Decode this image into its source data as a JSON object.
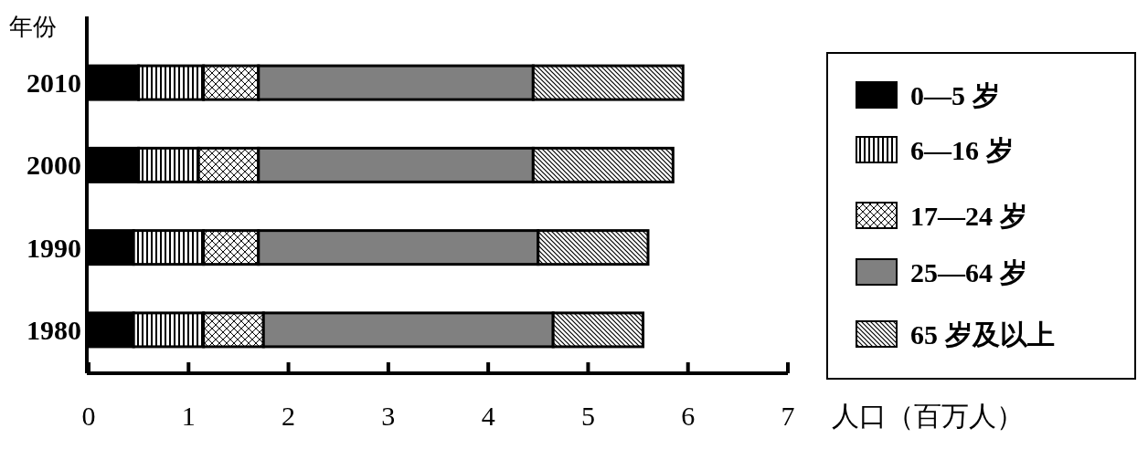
{
  "chart_data": {
    "type": "bar",
    "orientation": "horizontal",
    "stacked": true,
    "ylabel": "年份",
    "xlabel": "人口（百万人）",
    "categories": [
      "2010",
      "2000",
      "1990",
      "1980"
    ],
    "xlim": [
      0,
      7
    ],
    "xticks": [
      0,
      1,
      2,
      3,
      4,
      5,
      6,
      7
    ],
    "legend": "right",
    "grid": false,
    "series": [
      {
        "name": "0—5 岁",
        "color": "#000000",
        "values": [
          0.5,
          0.5,
          0.45,
          0.45
        ]
      },
      {
        "name": "6—16 岁",
        "color": "#000000",
        "values": [
          0.65,
          0.6,
          0.7,
          0.7
        ]
      },
      {
        "name": "17—24 岁",
        "color": "#000000",
        "values": [
          0.55,
          0.6,
          0.55,
          0.6
        ]
      },
      {
        "name": "25—64 岁",
        "color": "#808080",
        "values": [
          2.75,
          2.75,
          2.8,
          2.9
        ]
      },
      {
        "name": "65 岁及以上",
        "color": "#000000",
        "values": [
          1.5,
          1.4,
          1.1,
          0.9
        ]
      }
    ]
  }
}
